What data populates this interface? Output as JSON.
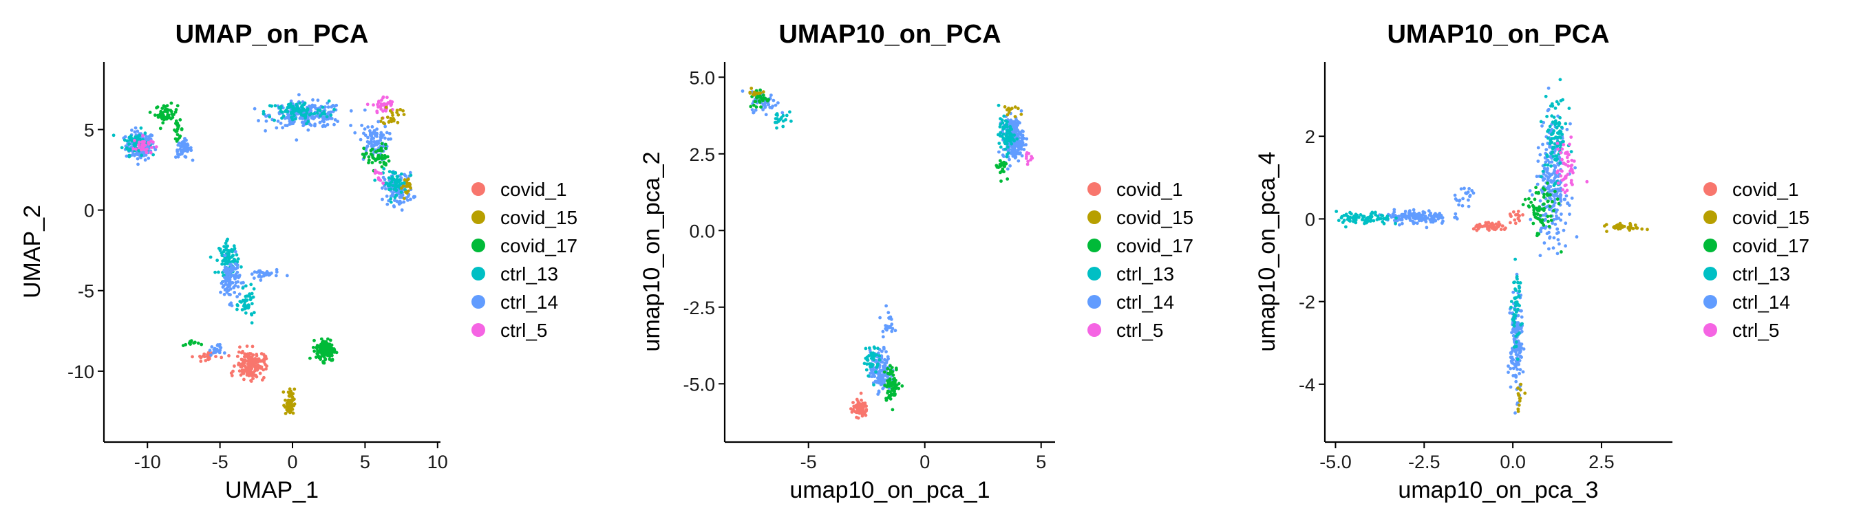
{
  "colors": {
    "covid_1": "#F8766D",
    "covid_15": "#B79F00",
    "covid_17": "#00BA38",
    "ctrl_13": "#00BFC4",
    "ctrl_14": "#619CFF",
    "ctrl_5": "#F564E3"
  },
  "legend": [
    "covid_1",
    "covid_15",
    "covid_17",
    "ctrl_13",
    "ctrl_14",
    "ctrl_5"
  ],
  "chart_data": [
    {
      "type": "scatter",
      "title": "UMAP_on_PCA",
      "xlabel": "UMAP_1",
      "ylabel": "UMAP_2",
      "xlim": [
        -13,
        10.2
      ],
      "ylim": [
        -14.4,
        9.2
      ],
      "xticks": [
        -10,
        -5,
        0,
        5,
        10
      ],
      "yticks": [
        -10,
        -5,
        0,
        5
      ],
      "xtick_labels": [
        "-10",
        "-5",
        "0",
        "5",
        "10"
      ],
      "ytick_labels": [
        "-10",
        "-5",
        "0",
        "5"
      ],
      "clusters": [
        {
          "group": "ctrl_14",
          "x": -10.5,
          "y": 4.0,
          "sx": 0.9,
          "sy": 0.8,
          "n": 140
        },
        {
          "group": "ctrl_13",
          "x": -10.8,
          "y": 4.2,
          "sx": 0.8,
          "sy": 0.7,
          "n": 60
        },
        {
          "group": "ctrl_5",
          "x": -10.3,
          "y": 4.0,
          "sx": 0.6,
          "sy": 0.5,
          "n": 30
        },
        {
          "group": "covid_17",
          "x": -8.7,
          "y": 6.0,
          "sx": 0.7,
          "sy": 0.5,
          "n": 50
        },
        {
          "group": "covid_17",
          "x": -7.9,
          "y": 5.0,
          "sx": 0.3,
          "sy": 0.5,
          "n": 20
        },
        {
          "group": "ctrl_14",
          "x": -7.5,
          "y": 3.8,
          "sx": 0.5,
          "sy": 0.5,
          "n": 50
        },
        {
          "group": "ctrl_14",
          "x": 1.0,
          "y": 5.9,
          "sx": 2.3,
          "sy": 0.7,
          "n": 210
        },
        {
          "group": "ctrl_13",
          "x": 0.3,
          "y": 6.1,
          "sx": 2.0,
          "sy": 0.6,
          "n": 90
        },
        {
          "group": "ctrl_5",
          "x": 6.3,
          "y": 6.5,
          "sx": 0.7,
          "sy": 0.5,
          "n": 40
        },
        {
          "group": "covid_15",
          "x": 6.9,
          "y": 5.9,
          "sx": 0.6,
          "sy": 0.6,
          "n": 25
        },
        {
          "group": "ctrl_14",
          "x": 5.6,
          "y": 4.2,
          "sx": 0.9,
          "sy": 1.0,
          "n": 90
        },
        {
          "group": "covid_17",
          "x": 5.8,
          "y": 3.3,
          "sx": 0.8,
          "sy": 0.7,
          "n": 50
        },
        {
          "group": "ctrl_14",
          "x": 7.3,
          "y": 1.3,
          "sx": 0.9,
          "sy": 0.9,
          "n": 120
        },
        {
          "group": "ctrl_13",
          "x": 7.0,
          "y": 1.7,
          "sx": 0.8,
          "sy": 0.7,
          "n": 60
        },
        {
          "group": "covid_15",
          "x": 8.0,
          "y": 1.5,
          "sx": 0.4,
          "sy": 0.5,
          "n": 20
        },
        {
          "group": "ctrl_5",
          "x": 6.0,
          "y": 2.0,
          "sx": 0.4,
          "sy": 0.4,
          "n": 10
        },
        {
          "group": "ctrl_13",
          "x": -4.4,
          "y": -3.0,
          "sx": 0.6,
          "sy": 0.9,
          "n": 90
        },
        {
          "group": "ctrl_14",
          "x": -4.3,
          "y": -4.3,
          "sx": 0.6,
          "sy": 1.2,
          "n": 100
        },
        {
          "group": "ctrl_13",
          "x": -3.1,
          "y": -5.9,
          "sx": 0.5,
          "sy": 0.8,
          "n": 40
        },
        {
          "group": "ctrl_14",
          "x": -2.0,
          "y": -4.0,
          "sx": 1.0,
          "sy": 0.3,
          "n": 30
        },
        {
          "group": "covid_1",
          "x": -2.9,
          "y": -9.6,
          "sx": 0.9,
          "sy": 0.8,
          "n": 170
        },
        {
          "group": "covid_1",
          "x": -6.0,
          "y": -9.1,
          "sx": 0.7,
          "sy": 0.3,
          "n": 20
        },
        {
          "group": "ctrl_14",
          "x": -5.3,
          "y": -8.7,
          "sx": 0.4,
          "sy": 0.3,
          "n": 20
        },
        {
          "group": "covid_17",
          "x": -7.0,
          "y": -8.3,
          "sx": 0.5,
          "sy": 0.2,
          "n": 12
        },
        {
          "group": "covid_15",
          "x": -0.2,
          "y": -12.0,
          "sx": 0.3,
          "sy": 0.8,
          "n": 55
        },
        {
          "group": "covid_17",
          "x": 2.3,
          "y": -8.7,
          "sx": 0.6,
          "sy": 0.6,
          "n": 150
        }
      ]
    },
    {
      "type": "scatter",
      "title": "UMAP10_on_PCA",
      "xlabel": "umap10_on_pca_1",
      "ylabel": "umap10_on_pca_2",
      "xlim": [
        -8.6,
        5.6
      ],
      "ylim": [
        -6.9,
        5.5
      ],
      "xticks": [
        -5,
        0,
        5
      ],
      "yticks": [
        -5,
        -2.5,
        0,
        2.5,
        5
      ],
      "xtick_labels": [
        "-5",
        "0",
        "5"
      ],
      "ytick_labels": [
        "-5.0",
        "-2.5",
        "0.0",
        "2.5",
        "5.0"
      ],
      "clusters": [
        {
          "group": "ctrl_14",
          "x": -6.9,
          "y": 4.2,
          "sx": 0.5,
          "sy": 0.3,
          "n": 60
        },
        {
          "group": "covid_17",
          "x": -7.1,
          "y": 4.3,
          "sx": 0.4,
          "sy": 0.3,
          "n": 30
        },
        {
          "group": "ctrl_13",
          "x": -6.2,
          "y": 3.7,
          "sx": 0.3,
          "sy": 0.3,
          "n": 20
        },
        {
          "group": "covid_15",
          "x": -7.3,
          "y": 4.5,
          "sx": 0.3,
          "sy": 0.2,
          "n": 10
        },
        {
          "group": "ctrl_14",
          "x": 3.8,
          "y": 3.0,
          "sx": 0.4,
          "sy": 0.6,
          "n": 220
        },
        {
          "group": "ctrl_13",
          "x": 3.5,
          "y": 3.1,
          "sx": 0.3,
          "sy": 0.5,
          "n": 70
        },
        {
          "group": "covid_17",
          "x": 3.3,
          "y": 2.1,
          "sx": 0.2,
          "sy": 0.3,
          "n": 25
        },
        {
          "group": "covid_15",
          "x": 3.6,
          "y": 3.9,
          "sx": 0.3,
          "sy": 0.2,
          "n": 12
        },
        {
          "group": "ctrl_5",
          "x": 4.4,
          "y": 2.4,
          "sx": 0.2,
          "sy": 0.2,
          "n": 10
        },
        {
          "group": "covid_1",
          "x": -2.8,
          "y": -5.8,
          "sx": 0.3,
          "sy": 0.25,
          "n": 90
        },
        {
          "group": "ctrl_14",
          "x": -1.9,
          "y": -4.6,
          "sx": 0.4,
          "sy": 0.6,
          "n": 140
        },
        {
          "group": "covid_17",
          "x": -1.4,
          "y": -5.0,
          "sx": 0.3,
          "sy": 0.5,
          "n": 70
        },
        {
          "group": "ctrl_13",
          "x": -2.3,
          "y": -4.2,
          "sx": 0.3,
          "sy": 0.5,
          "n": 40
        },
        {
          "group": "ctrl_14",
          "x": -1.6,
          "y": -3.0,
          "sx": 0.25,
          "sy": 0.4,
          "n": 20
        }
      ]
    },
    {
      "type": "scatter",
      "title": "UMAP10_on_PCA",
      "xlabel": "umap10_on_pca_3",
      "ylabel": "umap10_on_pca_4",
      "xlim": [
        -5.3,
        4.5
      ],
      "ylim": [
        -5.4,
        3.8
      ],
      "xticks": [
        -5,
        -2.5,
        0,
        2.5
      ],
      "yticks": [
        -4,
        -2,
        0,
        2
      ],
      "xtick_labels": [
        "-5.0",
        "-2.5",
        "0.0",
        "2.5"
      ],
      "ytick_labels": [
        "-4",
        "-2",
        "0",
        "2"
      ],
      "clusters": [
        {
          "group": "ctrl_14",
          "x": -2.7,
          "y": 0.05,
          "sx": 0.8,
          "sy": 0.15,
          "n": 130
        },
        {
          "group": "ctrl_13",
          "x": -4.2,
          "y": 0.0,
          "sx": 0.7,
          "sy": 0.15,
          "n": 80
        },
        {
          "group": "ctrl_14",
          "x": -1.3,
          "y": 0.6,
          "sx": 0.3,
          "sy": 0.2,
          "n": 20
        },
        {
          "group": "covid_1",
          "x": -0.6,
          "y": -0.2,
          "sx": 0.45,
          "sy": 0.08,
          "n": 60
        },
        {
          "group": "ctrl_14",
          "x": 1.1,
          "y": 0.8,
          "sx": 0.4,
          "sy": 1.3,
          "n": 230
        },
        {
          "group": "ctrl_13",
          "x": 1.2,
          "y": 2.0,
          "sx": 0.3,
          "sy": 0.9,
          "n": 90
        },
        {
          "group": "covid_17",
          "x": 0.8,
          "y": 0.2,
          "sx": 0.4,
          "sy": 0.6,
          "n": 70
        },
        {
          "group": "ctrl_5",
          "x": 1.5,
          "y": 1.2,
          "sx": 0.25,
          "sy": 0.6,
          "n": 50
        },
        {
          "group": "covid_15",
          "x": 3.2,
          "y": -0.2,
          "sx": 0.45,
          "sy": 0.07,
          "n": 40
        },
        {
          "group": "ctrl_14",
          "x": 0.1,
          "y": -3.0,
          "sx": 0.15,
          "sy": 1.1,
          "n": 170
        },
        {
          "group": "ctrl_13",
          "x": 0.1,
          "y": -2.2,
          "sx": 0.12,
          "sy": 0.9,
          "n": 50
        },
        {
          "group": "covid_15",
          "x": 0.2,
          "y": -4.3,
          "sx": 0.1,
          "sy": 0.3,
          "n": 12
        },
        {
          "group": "covid_1",
          "x": 0.1,
          "y": 0.0,
          "sx": 0.15,
          "sy": 0.15,
          "n": 15
        }
      ]
    }
  ]
}
